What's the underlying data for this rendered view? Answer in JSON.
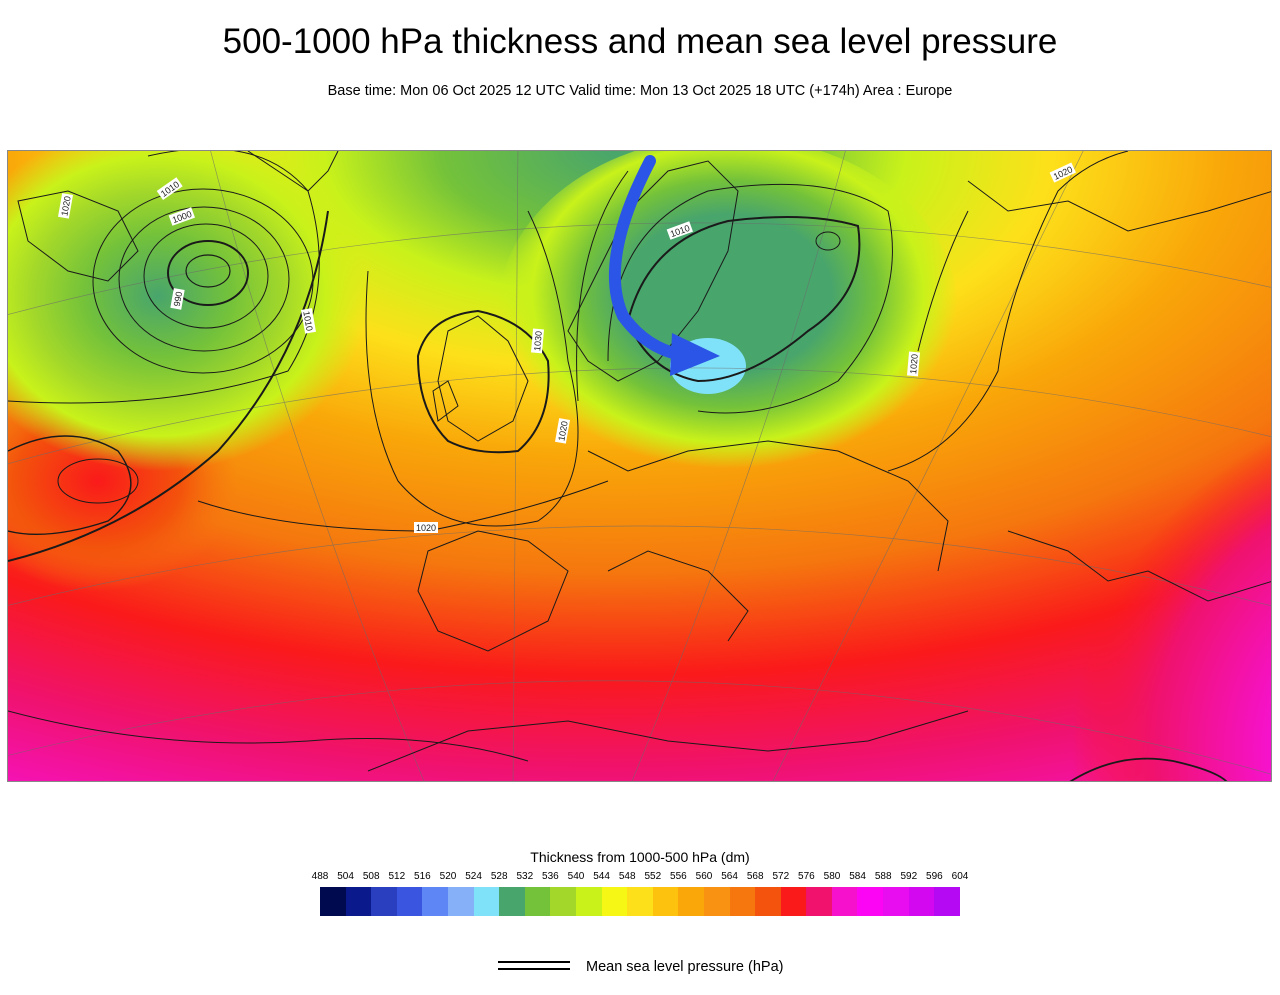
{
  "header": {
    "title": "500-1000 hPa thickness and mean sea level pressure",
    "subtitle": "Base time: Mon 06 Oct 2025 12 UTC Valid time: Mon 13 Oct 2025 18 UTC (+174h) Area : Europe"
  },
  "map": {
    "isobar_labels": [
      "1010",
      "1000",
      "990",
      "1010",
      "1020",
      "1020",
      "1010",
      "1020",
      "1030",
      "1020",
      "1020"
    ]
  },
  "legend": {
    "title": "Thickness from 1000-500 hPa (dm)",
    "ticks": [
      "488",
      "504",
      "508",
      "512",
      "516",
      "520",
      "524",
      "528",
      "532",
      "536",
      "540",
      "544",
      "548",
      "552",
      "556",
      "560",
      "564",
      "568",
      "572",
      "576",
      "580",
      "584",
      "588",
      "592",
      "596",
      "604"
    ],
    "colors": [
      "#000a4f",
      "#0a1a8c",
      "#2a3fbf",
      "#3a55e0",
      "#5f86f5",
      "#86b0f8",
      "#80e2f8",
      "#48a56c",
      "#74c23a",
      "#a3d82a",
      "#c9f21a",
      "#f7f716",
      "#fde01a",
      "#fcc20e",
      "#f9a709",
      "#f99212",
      "#f5770e",
      "#f3530c",
      "#fa1a1a",
      "#f0126c",
      "#f612cc",
      "#fc04f4",
      "#e80cf0",
      "#d407f1",
      "#b409f2"
    ],
    "msl_label": "Mean sea level pressure (hPa)"
  }
}
